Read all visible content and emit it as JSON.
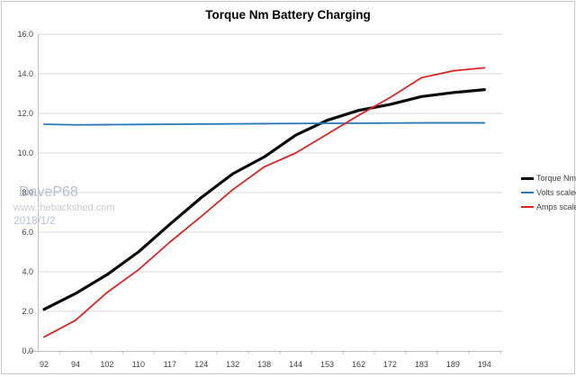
{
  "title": "Torque Nm Battery Charging",
  "watermark": {
    "line1": "DaveP68",
    "line2": "www.thebackshed.com",
    "line3": "2018/1/2"
  },
  "colors": {
    "torque": "#0a0a0a",
    "volts": "#2878b5",
    "amps": "#e02424",
    "gridline": "#d9d9d9",
    "axis_line": "#bfbfbf",
    "tick_label": "#404040",
    "frame_border": "#c9c9c9"
  },
  "chart_data": {
    "type": "line",
    "title": "Torque Nm Battery Charging",
    "categories": [
      "92",
      "94",
      "102",
      "110",
      "117",
      "124",
      "132",
      "138",
      "144",
      "153",
      "162",
      "172",
      "183",
      "189",
      "194"
    ],
    "series": [
      {
        "name": "Torque Nm",
        "color": "#0a0a0a",
        "stroke_width": 3.2,
        "values": [
          2.1,
          2.9,
          3.85,
          5.0,
          6.4,
          7.75,
          8.95,
          9.8,
          10.9,
          11.65,
          12.15,
          12.45,
          12.85,
          13.05,
          13.2
        ]
      },
      {
        "name": "Volts scaled",
        "color": "#2878b5",
        "stroke_width": 1.8,
        "values": [
          11.45,
          11.42,
          11.43,
          11.44,
          11.45,
          11.46,
          11.47,
          11.48,
          11.49,
          11.5,
          11.5,
          11.51,
          11.52,
          11.52,
          11.52
        ]
      },
      {
        "name": "Amps scaled",
        "color": "#e02424",
        "stroke_width": 1.8,
        "values": [
          0.7,
          1.55,
          2.95,
          4.1,
          5.5,
          6.8,
          8.15,
          9.3,
          10.0,
          10.95,
          11.9,
          12.8,
          13.8,
          14.15,
          14.3
        ]
      }
    ],
    "xlabel": "",
    "ylabel": "",
    "ylim": [
      0,
      16
    ],
    "ytick_step": 2,
    "ytick_labels": [
      "0.0",
      "2.0",
      "4.0",
      "6.0",
      "8.0",
      "10.0",
      "12.0",
      "14.0",
      "16.0"
    ],
    "grid": true,
    "legend_position": "right"
  }
}
